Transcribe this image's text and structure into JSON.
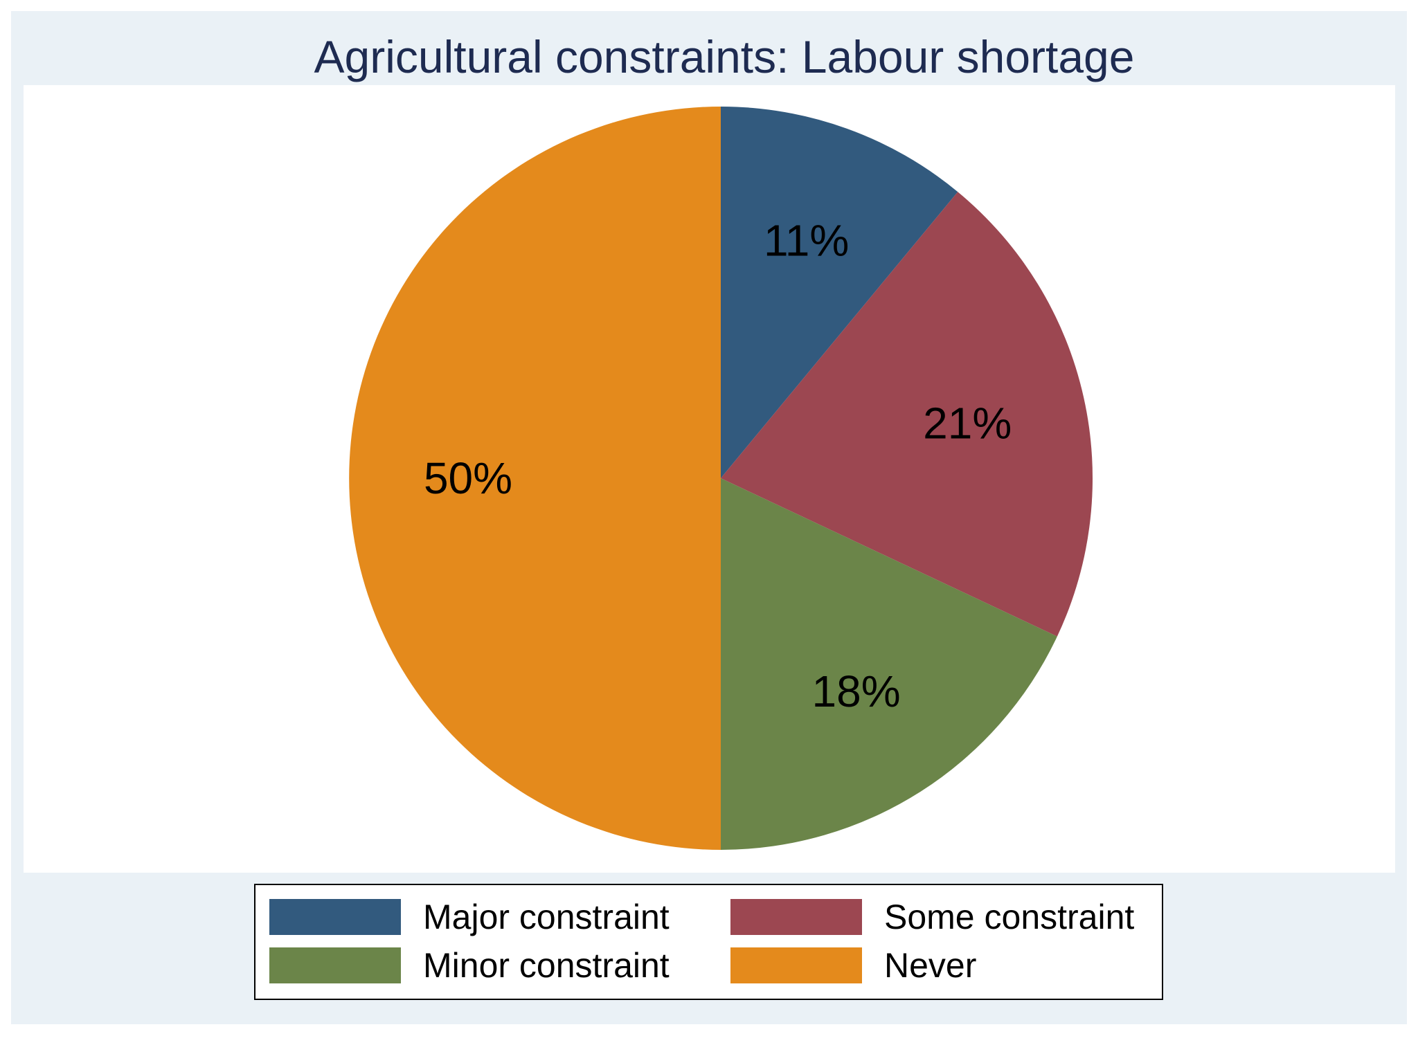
{
  "chart_data": {
    "type": "pie",
    "title": "Agricultural constraints: Labour shortage",
    "start_angle_deg": 0,
    "direction": "clockwise",
    "slices": [
      {
        "label": "Major constraint",
        "value": 11,
        "display": "11%",
        "color": "#325a7e"
      },
      {
        "label": "Some constraint",
        "value": 21,
        "display": "21%",
        "color": "#9c4751"
      },
      {
        "label": "Minor constraint",
        "value": 18,
        "display": "18%",
        "color": "#6b8549"
      },
      {
        "label": "Never",
        "value": 50,
        "display": "50%",
        "color": "#e48a1c"
      }
    ],
    "legend_placement": "bottom",
    "legend_columns": 2,
    "background_color": "#eaf1f6",
    "plot_background_color": "#ffffff",
    "title_color": "#1e2b51"
  }
}
